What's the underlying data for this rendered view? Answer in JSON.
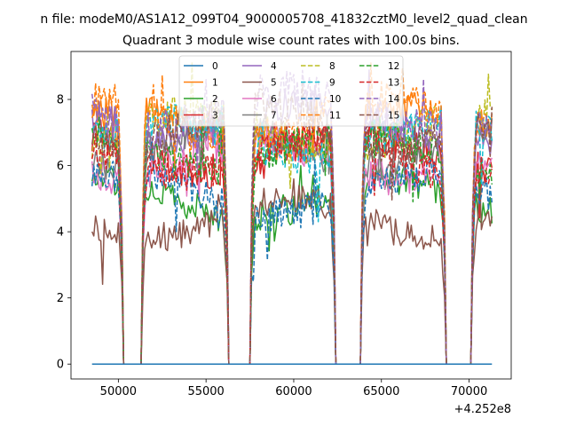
{
  "chart_data": {
    "type": "line",
    "suptitle": "n file: modeM0/AS1A12_099T04_9000005708_41832cztM0_level2_quad_clean",
    "title": "Quadrant 3 module wise count rates with 100.0s bins.",
    "xlabel": "",
    "ylabel": "",
    "x_offset_label": "+4.252e8",
    "xlim": [
      47300,
      72400
    ],
    "ylim": [
      -0.45,
      9.45
    ],
    "x_ticks": [
      50000,
      55000,
      60000,
      65000,
      70000
    ],
    "y_ticks": [
      0,
      2,
      4,
      6,
      8
    ],
    "x_start": 48500,
    "x_end": 71300,
    "bin": 100,
    "gaps": [
      [
        50300,
        51300
      ],
      [
        56300,
        57500
      ],
      [
        62400,
        63800
      ],
      [
        68700,
        70100
      ]
    ],
    "legend": {
      "position": "upper center",
      "ncol": 4
    },
    "series": [
      {
        "name": "0",
        "color": "#1f77b4",
        "dash": "solid",
        "level": 0.0,
        "amp": 0.0,
        "flat": true
      },
      {
        "name": "1",
        "color": "#ff7f0e",
        "dash": "solid",
        "level": 7.1,
        "amp": 0.55
      },
      {
        "name": "2",
        "color": "#2ca02c",
        "dash": "solid",
        "level": 5.0,
        "amp": 0.5
      },
      {
        "name": "3",
        "color": "#d62728",
        "dash": "solid",
        "level": 6.4,
        "amp": 0.55
      },
      {
        "name": "4",
        "color": "#9467bd",
        "dash": "solid",
        "level": 7.3,
        "amp": 0.55
      },
      {
        "name": "5",
        "color": "#8c564b",
        "dash": "solid",
        "level": 4.4,
        "amp": 0.45
      },
      {
        "name": "6",
        "color": "#e377c2",
        "dash": "solid",
        "level": 6.2,
        "amp": 0.55
      },
      {
        "name": "7",
        "color": "#7f7f7f",
        "dash": "solid",
        "level": 6.6,
        "amp": 0.5
      },
      {
        "name": "8",
        "color": "#bcbd22",
        "dash": "dashed",
        "level": 7.0,
        "amp": 0.55
      },
      {
        "name": "9",
        "color": "#17becf",
        "dash": "dashed",
        "level": 6.8,
        "amp": 0.5
      },
      {
        "name": "10",
        "color": "#1f77b4",
        "dash": "dashed",
        "level": 5.1,
        "amp": 0.5
      },
      {
        "name": "11",
        "color": "#ff7f0e",
        "dash": "dashed",
        "level": 7.4,
        "amp": 0.55
      },
      {
        "name": "12",
        "color": "#2ca02c",
        "dash": "dashed",
        "level": 6.5,
        "amp": 0.5
      },
      {
        "name": "13",
        "color": "#d62728",
        "dash": "dashed",
        "level": 6.3,
        "amp": 0.55
      },
      {
        "name": "14",
        "color": "#9467bd",
        "dash": "dashed",
        "level": 7.7,
        "amp": 0.6
      },
      {
        "name": "15",
        "color": "#8c564b",
        "dash": "dashed",
        "level": 7.2,
        "amp": 0.55
      }
    ]
  }
}
